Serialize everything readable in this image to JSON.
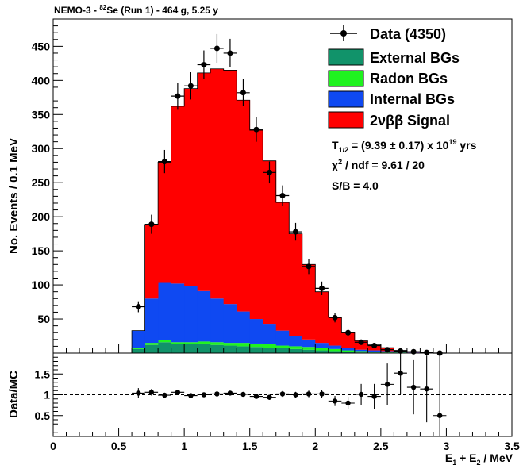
{
  "chart_data": [
    {
      "type": "histogram-stacked",
      "title": "NEMO-3 - 82Se (Run 1) - 464 g, 5.25 y",
      "title_parts": {
        "pre": "NEMO-3 - ",
        "sup": "82",
        "post": "Se (Run 1) - 464 g, 5.25 y"
      },
      "xlim": [
        0,
        3.5
      ],
      "ylim": [
        0,
        490
      ],
      "ylabel": "No. Events / 0.1 MeV",
      "yticks": [
        "50",
        "100",
        "150",
        "200",
        "250",
        "300",
        "350",
        "400",
        "450"
      ],
      "bin_width": 0.1,
      "bin_starts": [
        0.6,
        0.7,
        0.8,
        0.9,
        1.0,
        1.1,
        1.2,
        1.3,
        1.4,
        1.5,
        1.6,
        1.7,
        1.8,
        1.9,
        2.0,
        2.1,
        2.2,
        2.3,
        2.4,
        2.5,
        2.6,
        2.7,
        2.8,
        2.9
      ],
      "series": [
        {
          "name": "External BGs",
          "color": "#11936a",
          "values": [
            6,
            12,
            16,
            13,
            13,
            14,
            12,
            11,
            10,
            9,
            8,
            7,
            6,
            5,
            4,
            3,
            2,
            1,
            1,
            1,
            0,
            0,
            0,
            0
          ]
        },
        {
          "name": "Radon BGs",
          "color": "#1ff21f",
          "values": [
            2,
            3,
            3,
            3,
            3,
            3,
            4,
            4,
            5,
            5,
            5,
            4,
            4,
            4,
            3,
            3,
            2,
            2,
            1,
            1,
            1,
            0,
            0,
            0
          ]
        },
        {
          "name": "Internal BGs",
          "color": "#0f49f2",
          "values": [
            25,
            65,
            84,
            86,
            82,
            74,
            64,
            57,
            46,
            36,
            30,
            22,
            15,
            11,
            8,
            5,
            4,
            2,
            2,
            1,
            1,
            1,
            0,
            0
          ]
        },
        {
          "name": "2νββ Signal",
          "color": "#ff0000",
          "values": [
            0,
            108,
            177,
            260,
            290,
            320,
            337,
            343,
            310,
            277,
            239,
            188,
            150,
            110,
            75,
            42,
            22,
            13,
            8,
            5,
            2,
            1,
            0,
            0
          ]
        }
      ],
      "data_points": {
        "name": "Data (4350)",
        "x": [
          0.65,
          0.75,
          0.85,
          0.95,
          1.05,
          1.15,
          1.25,
          1.35,
          1.45,
          1.55,
          1.65,
          1.75,
          1.85,
          1.95,
          2.05,
          2.15,
          2.25,
          2.35,
          2.45,
          2.55,
          2.65,
          2.75,
          2.85,
          2.95
        ],
        "y": [
          68,
          189,
          281,
          377,
          392,
          423,
          447,
          440,
          382,
          328,
          265,
          231,
          178,
          127,
          95,
          52,
          30,
          16,
          11,
          5,
          3,
          2,
          1,
          0
        ],
        "err": [
          8,
          14,
          17,
          19,
          20,
          21,
          21,
          21,
          20,
          18,
          16,
          15,
          13,
          11,
          10,
          7,
          5.5,
          4,
          3.3,
          2.2,
          1.7,
          1.4,
          1,
          1
        ]
      },
      "legend": {
        "placement": "top-right",
        "entries": [
          "Data (4350)",
          "External BGs",
          "Radon BGs",
          "Internal BGs",
          "2νββ Signal"
        ]
      },
      "annotations": {
        "thalf": {
          "main": "T",
          "sub": "1/2",
          "mid": " = (9.39 ± 0.17) x 10",
          "sup": "19",
          "end": " yrs"
        },
        "chi": {
          "main": "χ",
          "sup": "2",
          "end": " / ndf = 9.61 / 20"
        },
        "sb": "S/B = 4.0"
      }
    },
    {
      "type": "scatter",
      "ylabel": "Data/MC",
      "xlabel_parts": {
        "a": "E",
        "sub1": "1",
        "b": " + E",
        "sub2": "2",
        "c": " / MeV"
      },
      "xlim": [
        0,
        3.5
      ],
      "ylim": [
        0,
        2.0
      ],
      "xticks": [
        "0",
        "0.5",
        "1",
        "1.5",
        "2",
        "2.5",
        "3",
        "3.5"
      ],
      "yticks": [
        "0.5",
        "1",
        "1.5"
      ],
      "reference_line": 1.0,
      "x": [
        0.65,
        0.75,
        0.85,
        0.95,
        1.05,
        1.15,
        1.25,
        1.35,
        1.45,
        1.55,
        1.65,
        1.75,
        1.85,
        1.95,
        2.05,
        2.15,
        2.25,
        2.35,
        2.45,
        2.55,
        2.65,
        2.75,
        2.85,
        2.95
      ],
      "y": [
        1.04,
        1.06,
        0.99,
        1.06,
        0.98,
        1.0,
        1.02,
        1.04,
        1.01,
        0.96,
        0.94,
        1.02,
        1.0,
        1.02,
        1.02,
        0.85,
        0.8,
        1.01,
        0.96,
        1.25,
        1.52,
        1.18,
        1.14,
        0.5
      ],
      "err": [
        0.12,
        0.08,
        0.06,
        0.05,
        0.05,
        0.05,
        0.05,
        0.05,
        0.05,
        0.05,
        0.06,
        0.07,
        0.07,
        0.08,
        0.1,
        0.12,
        0.15,
        0.25,
        0.3,
        0.5,
        0.5,
        0.65,
        0.8,
        1.5
      ]
    }
  ]
}
